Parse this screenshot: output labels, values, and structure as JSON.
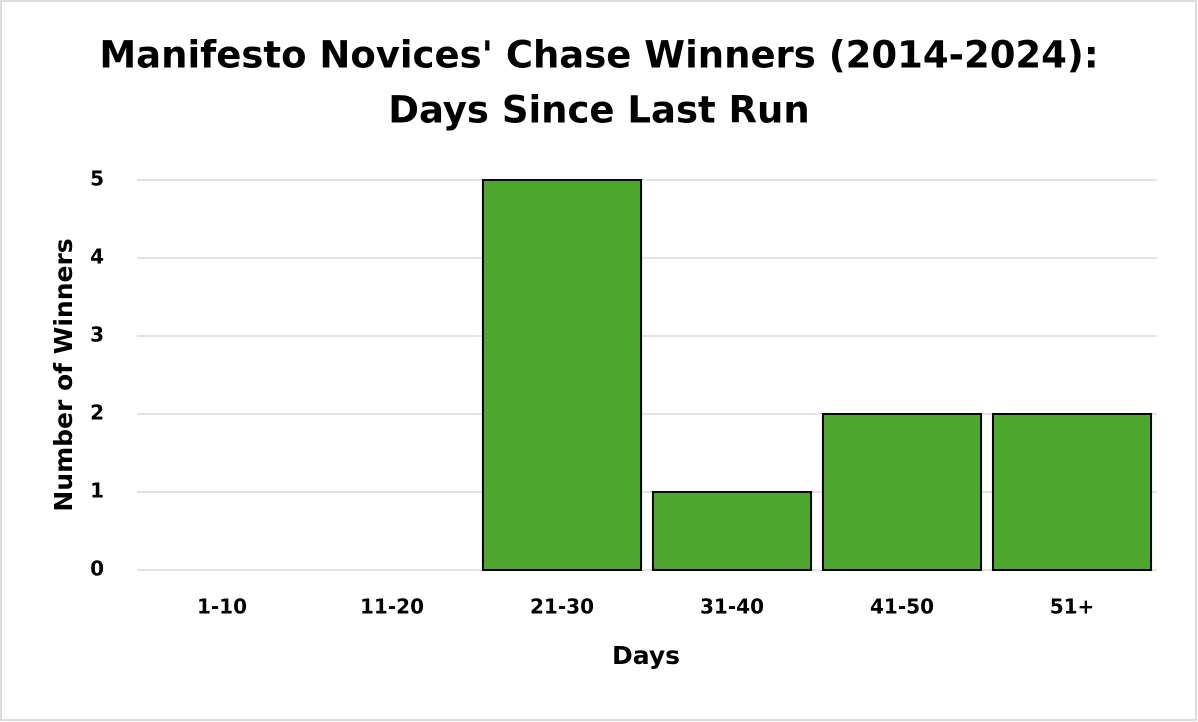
{
  "chart_data": {
    "type": "bar",
    "title": [
      "Manifesto Novices' Chase Winners (2014-2024):",
      "Days Since Last Run"
    ],
    "x_label": "Days",
    "y_label": "Number of Winners",
    "categories": [
      "1-10",
      "11-20",
      "21-30",
      "31-40",
      "41-50",
      "51+"
    ],
    "values": [
      0,
      0,
      5,
      1,
      2,
      2
    ],
    "color": "#4ea72e",
    "ylim": [
      0,
      5
    ],
    "yticks": [
      0,
      1,
      2,
      3,
      4,
      5
    ],
    "grid": true
  }
}
